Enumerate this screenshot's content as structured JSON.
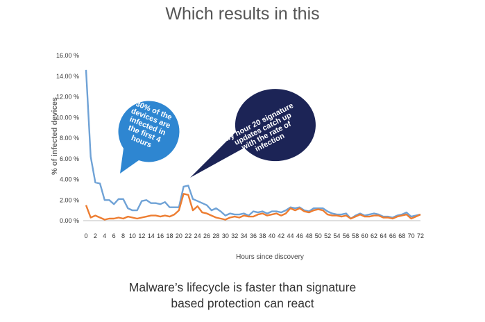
{
  "slide": {
    "title": "Which results in this",
    "caption_line1": "Malware’s lifecycle is faster than signature",
    "caption_line2": "based protection can react"
  },
  "chart_data": {
    "type": "line",
    "title": "",
    "xlabel": "Hours since discovery",
    "ylabel": "% of infected devices",
    "xlim": [
      0,
      72
    ],
    "ylim": [
      0,
      16
    ],
    "y_ticks": [
      "0.00 %",
      "2.00 %",
      "4.00 %",
      "6.00 %",
      "8.00 %",
      "10.00 %",
      "12.00 %",
      "14.00 %",
      "16.00 %"
    ],
    "x_ticks": [
      0,
      2,
      4,
      6,
      8,
      10,
      12,
      14,
      16,
      18,
      20,
      22,
      24,
      26,
      28,
      30,
      32,
      34,
      36,
      38,
      40,
      42,
      44,
      46,
      48,
      50,
      52,
      54,
      56,
      58,
      60,
      62,
      64,
      66,
      68,
      70,
      72
    ],
    "grid": false,
    "legend": "none",
    "x": [
      0,
      1,
      2,
      3,
      4,
      5,
      6,
      7,
      8,
      9,
      10,
      11,
      12,
      13,
      14,
      15,
      16,
      17,
      18,
      19,
      20,
      21,
      22,
      23,
      24,
      25,
      26,
      27,
      28,
      29,
      30,
      31,
      32,
      33,
      34,
      35,
      36,
      37,
      38,
      39,
      40,
      41,
      42,
      43,
      44,
      45,
      46,
      47,
      48,
      49,
      50,
      51,
      52,
      53,
      54,
      55,
      56,
      57,
      58,
      59,
      60,
      61,
      62,
      63,
      64,
      65,
      66,
      67,
      68,
      69,
      70,
      71,
      72
    ],
    "series": [
      {
        "color": "#6fa2d6",
        "values": [
          14.6,
          6.2,
          3.7,
          3.6,
          2.0,
          2.0,
          1.6,
          2.1,
          2.1,
          1.2,
          1.0,
          1.0,
          1.9,
          2.0,
          1.7,
          1.7,
          1.6,
          1.8,
          1.3,
          1.3,
          1.3,
          3.3,
          3.4,
          2.1,
          1.9,
          1.7,
          1.5,
          1.0,
          1.2,
          0.9,
          0.5,
          0.7,
          0.6,
          0.6,
          0.7,
          0.5,
          0.9,
          0.8,
          0.9,
          0.7,
          0.9,
          0.9,
          0.8,
          1.0,
          1.3,
          1.2,
          1.3,
          1.0,
          0.9,
          1.2,
          1.2,
          1.2,
          0.9,
          0.7,
          0.6,
          0.6,
          0.7,
          0.2,
          0.5,
          0.7,
          0.5,
          0.6,
          0.7,
          0.6,
          0.4,
          0.4,
          0.3,
          0.5,
          0.6,
          0.8,
          0.4,
          0.5,
          0.6
        ]
      },
      {
        "color": "#ed7d31",
        "values": [
          1.5,
          0.3,
          0.5,
          0.3,
          0.1,
          0.2,
          0.2,
          0.3,
          0.2,
          0.4,
          0.3,
          0.2,
          0.3,
          0.4,
          0.5,
          0.5,
          0.4,
          0.5,
          0.4,
          0.6,
          1.0,
          2.6,
          2.5,
          1.0,
          1.4,
          0.8,
          0.7,
          0.5,
          0.3,
          0.2,
          0.1,
          0.3,
          0.4,
          0.3,
          0.5,
          0.4,
          0.4,
          0.6,
          0.7,
          0.5,
          0.6,
          0.7,
          0.5,
          0.7,
          1.2,
          1.0,
          1.2,
          0.9,
          0.8,
          1.0,
          1.1,
          1.0,
          0.6,
          0.5,
          0.5,
          0.4,
          0.5,
          0.2,
          0.4,
          0.6,
          0.4,
          0.4,
          0.5,
          0.5,
          0.3,
          0.3,
          0.2,
          0.4,
          0.5,
          0.6,
          0.2,
          0.4,
          0.6
        ]
      }
    ],
    "annotations": [
      {
        "lines": [
          "30% of the",
          "devices are",
          "infected in",
          "the first 4",
          "hours"
        ],
        "color": "#2e86d1"
      },
      {
        "lines": [
          "by hour 20 signature",
          "updates catch up",
          "with the rate of",
          "infection"
        ],
        "color": "#1c2456"
      }
    ]
  }
}
